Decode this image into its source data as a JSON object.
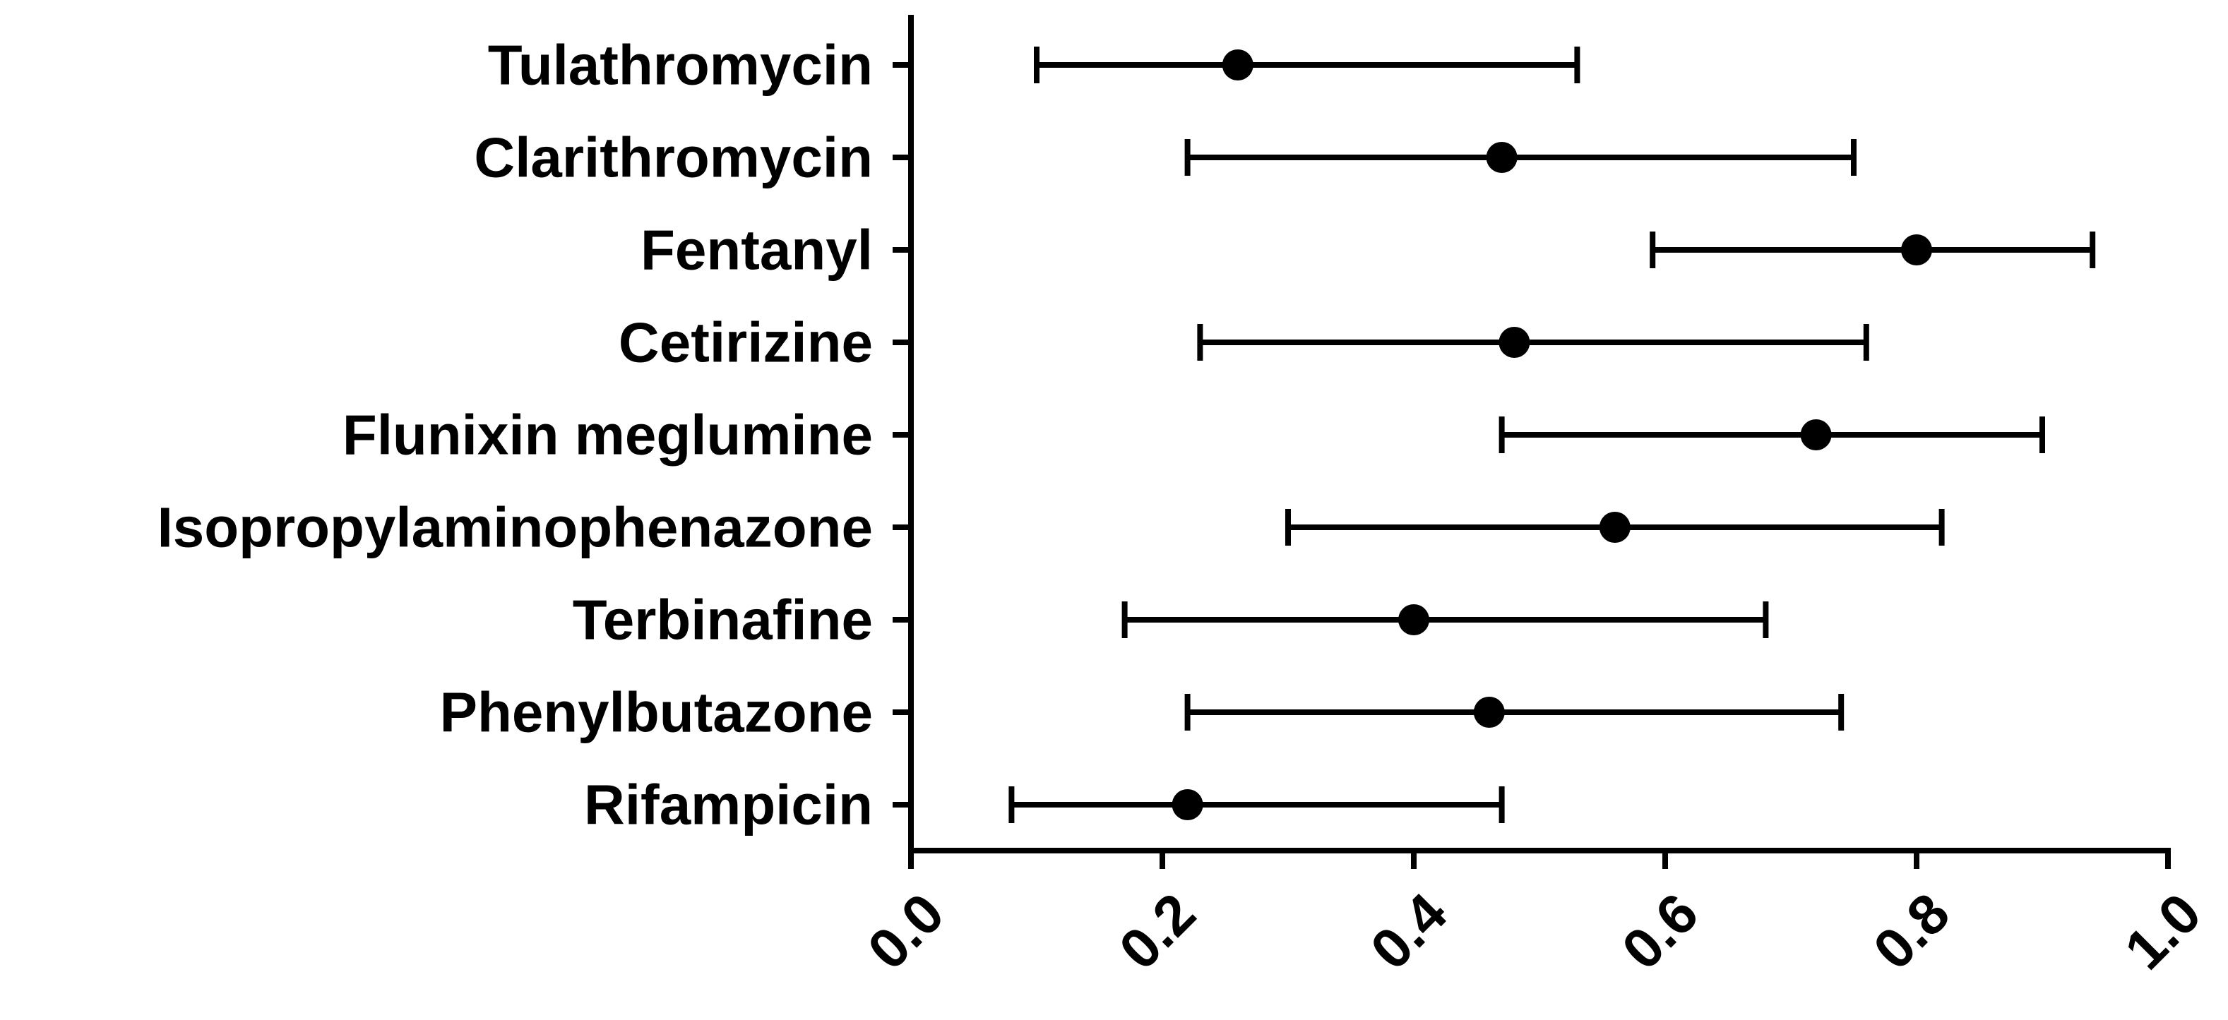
{
  "chart_data": {
    "type": "scatter",
    "orientation": "horizontal",
    "title": "",
    "xlabel": "",
    "ylabel": "",
    "xlim": [
      0,
      1
    ],
    "x_ticks": [
      "0.0",
      "0.2",
      "0.4",
      "0.6",
      "0.8",
      "1.0"
    ],
    "x_tick_values": [
      0,
      0.2,
      0.4,
      0.6,
      0.8,
      1.0
    ],
    "x_tick_label_rotation": "-45deg",
    "grid": false,
    "legend": "none",
    "marker_color": "#000000",
    "categories": [
      "Tulathromycin",
      "Clarithromycin",
      "Fentanyl",
      "Cetirizine",
      "Flunixin meglumine",
      "Isopropylaminophenazone",
      "Terbinafine",
      "Phenylbutazone",
      "Rifampicin"
    ],
    "points": [
      {
        "category": "Tulathromycin",
        "value": 0.26,
        "lower": 0.1,
        "upper": 0.53
      },
      {
        "category": "Clarithromycin",
        "value": 0.47,
        "lower": 0.22,
        "upper": 0.75
      },
      {
        "category": "Fentanyl",
        "value": 0.8,
        "lower": 0.59,
        "upper": 0.94
      },
      {
        "category": "Cetirizine",
        "value": 0.48,
        "lower": 0.23,
        "upper": 0.76
      },
      {
        "category": "Flunixin meglumine",
        "value": 0.72,
        "lower": 0.47,
        "upper": 0.9
      },
      {
        "category": "Isopropylaminophenazone",
        "value": 0.56,
        "lower": 0.3,
        "upper": 0.82
      },
      {
        "category": "Terbinafine",
        "value": 0.4,
        "lower": 0.17,
        "upper": 0.68
      },
      {
        "category": "Phenylbutazone",
        "value": 0.46,
        "lower": 0.22,
        "upper": 0.74
      },
      {
        "category": "Rifampicin",
        "value": 0.22,
        "lower": 0.08,
        "upper": 0.47
      }
    ]
  }
}
